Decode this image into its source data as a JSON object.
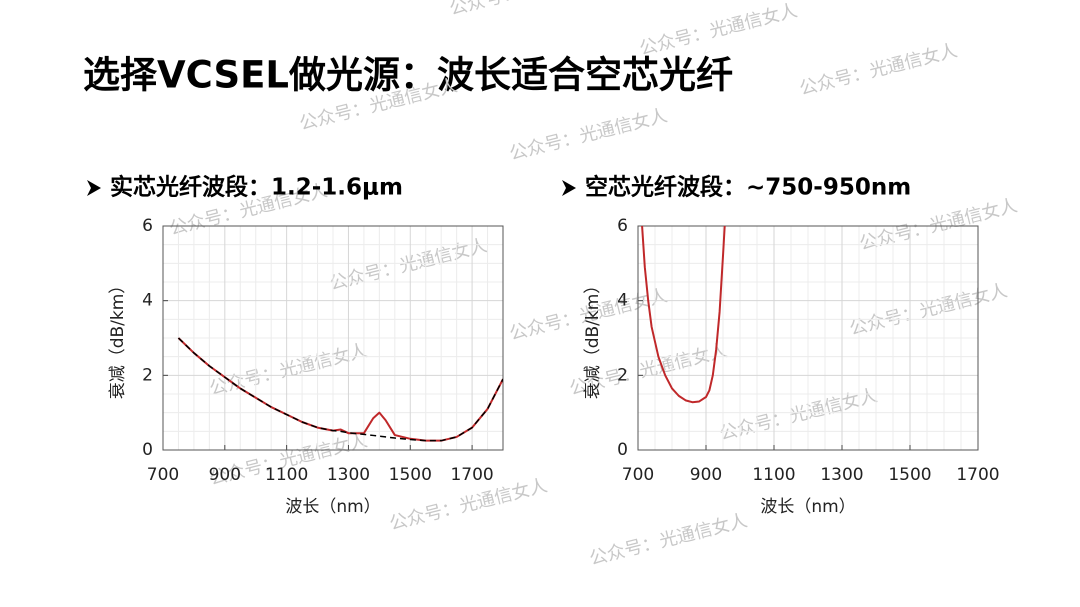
{
  "title": "选择VCSEL做光源：波长适合空芯光纤",
  "watermark": "公众号：光通信女人",
  "chart_data": [
    {
      "type": "line",
      "title": "实芯光纤波段：1.2-1.6μm",
      "x_label": "波长（nm）",
      "y_label": "衰减（dB/km）",
      "xlim": [
        700,
        1800
      ],
      "xticks": [
        700,
        900,
        1100,
        1300,
        1500,
        1700
      ],
      "ylim": [
        0,
        6
      ],
      "yticks": [
        0,
        2,
        4,
        6
      ],
      "grid": true,
      "minor_divisions": 4,
      "x": [
        750,
        800,
        850,
        900,
        950,
        1000,
        1050,
        1100,
        1150,
        1200,
        1250,
        1275,
        1300,
        1350,
        1380,
        1400,
        1420,
        1450,
        1500,
        1550,
        1600,
        1650,
        1700,
        1750,
        1800
      ],
      "series": [
        {
          "color": "#c0282a",
          "dash": false,
          "values": [
            3.0,
            2.6,
            2.25,
            1.95,
            1.65,
            1.4,
            1.15,
            0.95,
            0.75,
            0.6,
            0.52,
            0.55,
            0.45,
            0.45,
            0.85,
            1.0,
            0.8,
            0.4,
            0.3,
            0.25,
            0.25,
            0.35,
            0.6,
            1.1,
            1.9
          ]
        },
        {
          "color": "#000000",
          "dash": true,
          "values": [
            3.0,
            2.6,
            2.25,
            1.95,
            1.65,
            1.4,
            1.15,
            0.95,
            0.75,
            0.6,
            0.52,
            0.5,
            0.46,
            0.42,
            0.39,
            0.37,
            0.35,
            0.32,
            0.28,
            0.25,
            0.25,
            0.35,
            0.6,
            1.1,
            1.9
          ]
        }
      ]
    },
    {
      "type": "line",
      "title": "空芯光纤波段：~750-950nm",
      "x_label": "波长（nm）",
      "y_label": "衰减（dB/km）",
      "xlim": [
        700,
        1700
      ],
      "xticks": [
        700,
        900,
        1100,
        1300,
        1500,
        1700
      ],
      "ylim": [
        0,
        6
      ],
      "yticks": [
        0,
        2,
        4,
        6
      ],
      "grid": true,
      "minor_divisions": 4,
      "x": [
        712,
        720,
        730,
        740,
        760,
        780,
        800,
        820,
        840,
        860,
        880,
        900,
        910,
        920,
        930,
        940,
        950,
        955
      ],
      "series": [
        {
          "color": "#c0282a",
          "dash": false,
          "values": [
            6.0,
            4.9,
            4.0,
            3.3,
            2.5,
            2.0,
            1.65,
            1.45,
            1.33,
            1.28,
            1.3,
            1.42,
            1.6,
            2.0,
            2.7,
            3.7,
            5.2,
            6.0
          ]
        }
      ]
    }
  ]
}
